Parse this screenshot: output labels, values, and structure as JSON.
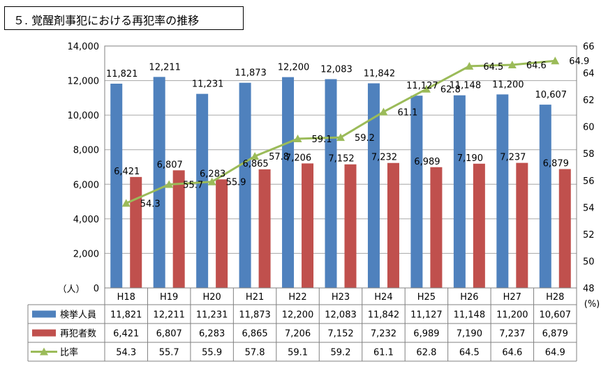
{
  "title": "５. 覚醒剤事犯における再犯率の推移",
  "chart_data": {
    "type": "bar",
    "title": "５. 覚醒剤事犯における再犯率の推移",
    "categories": [
      "H18",
      "H19",
      "H20",
      "H21",
      "H22",
      "H23",
      "H24",
      "H25",
      "H26",
      "H27",
      "H28"
    ],
    "y_left": {
      "label": "（人）",
      "min": 0,
      "max": 14000,
      "step": 2000
    },
    "y_right": {
      "label": "(%)",
      "min": 48,
      "max": 66,
      "step": 2
    },
    "series": [
      {
        "name": "検挙人員",
        "kind": "bar",
        "axis": "left",
        "color": "#4F81BD",
        "values": [
          11821,
          12211,
          11231,
          11873,
          12200,
          12083,
          11842,
          11127,
          11148,
          11200,
          10607
        ],
        "labels": [
          "11,821",
          "12,211",
          "11,231",
          "11,873",
          "12,200",
          "12,083",
          "11,842",
          "11,127",
          "11,148",
          "11,200",
          "10,607"
        ]
      },
      {
        "name": "再犯者数",
        "kind": "bar",
        "axis": "left",
        "color": "#C0504D",
        "values": [
          6421,
          6807,
          6283,
          6865,
          7206,
          7152,
          7232,
          6989,
          7190,
          7237,
          6879
        ],
        "labels": [
          "6,421",
          "6,807",
          "6,283",
          "6,865",
          "7,206",
          "7,152",
          "7,232",
          "6,989",
          "7,190",
          "7,237",
          "6,879"
        ]
      },
      {
        "name": "比率",
        "kind": "line",
        "axis": "right",
        "color": "#9BBB59",
        "values": [
          54.3,
          55.7,
          55.9,
          57.8,
          59.1,
          59.2,
          61.1,
          62.8,
          64.5,
          64.6,
          64.9
        ],
        "labels": [
          "54.3",
          "55.7",
          "55.9",
          "57.8",
          "59.1",
          "59.2",
          "61.1",
          "62.8",
          "64.5",
          "64.6",
          "64.9"
        ]
      }
    ],
    "grid": true,
    "legend": "data-table-below"
  }
}
